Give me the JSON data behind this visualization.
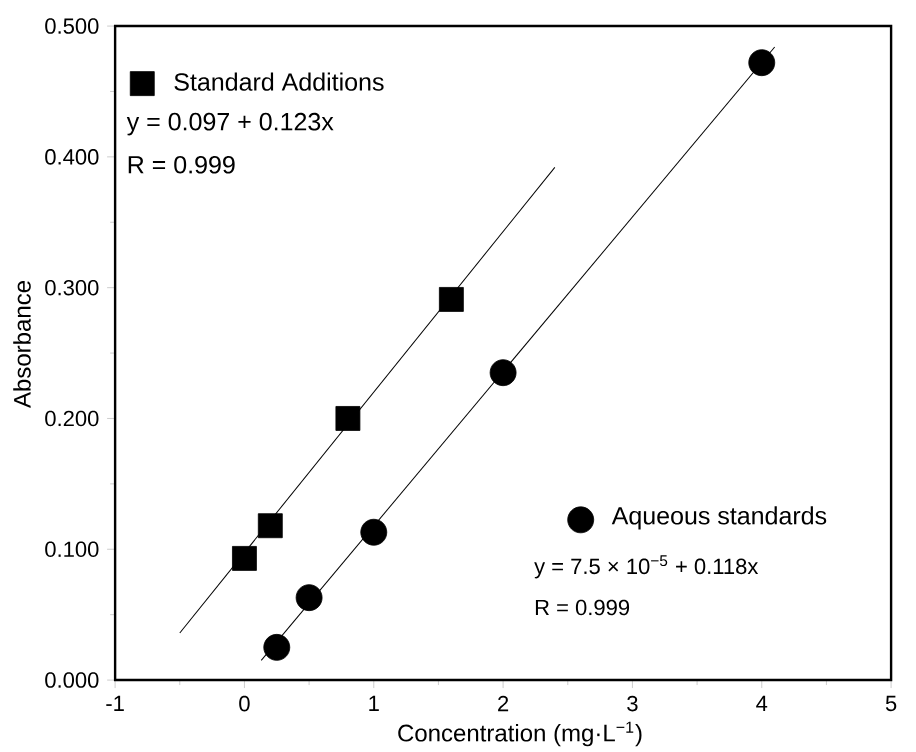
{
  "chart_data": {
    "type": "scatter",
    "xlabel": "Concentration (mg·L$^{−1}$)",
    "ylabel": "Absorbance",
    "legend": "top left",
    "xlim": [
      -1,
      5
    ],
    "ylim": [
      0,
      0.5
    ],
    "xticks": [
      -1,
      0,
      1,
      2,
      3,
      4,
      5
    ],
    "yticks": [
      {
        "value": 0,
        "label": "0.000"
      },
      {
        "value": 0.1,
        "label": "0.100"
      },
      {
        "value": 0.2,
        "label": "0.200"
      },
      {
        "value": 0.3,
        "label": "0.300"
      },
      {
        "value": 0.4,
        "label": "0.400"
      },
      {
        "value": 0.5,
        "label": "0.500"
      }
    ],
    "series": [
      {
        "name": "Standard Additions",
        "marker": "square",
        "color": "#000000",
        "x": [
          0,
          0.2,
          0.8,
          1.6
        ],
        "values": [
          0.093,
          0.118,
          0.2,
          0.291
        ]
      },
      {
        "type": "line",
        "color": "#000000",
        "x": [
          -0.5,
          2.4
        ],
        "values": [
          0.036,
          0.392
        ]
      },
      {
        "name": "Aqueous standards",
        "marker": "circle",
        "color": "#000000",
        "x": [
          0.25,
          0.5,
          1.0,
          2.0,
          4.0
        ],
        "values": [
          0.025,
          0.063,
          0.113,
          0.235,
          0.472
        ]
      },
      {
        "type": "line",
        "color": "#000000",
        "x": [
          0.13,
          4.1
        ],
        "values": [
          0.015,
          0.484
        ]
      }
    ],
    "annotations": [
      "y = 0.097 + 0.123x",
      "R = 0.999",
      "y = 7.5 × 10$^{−5}$ + 0.118x",
      "R = 0.999"
    ]
  }
}
